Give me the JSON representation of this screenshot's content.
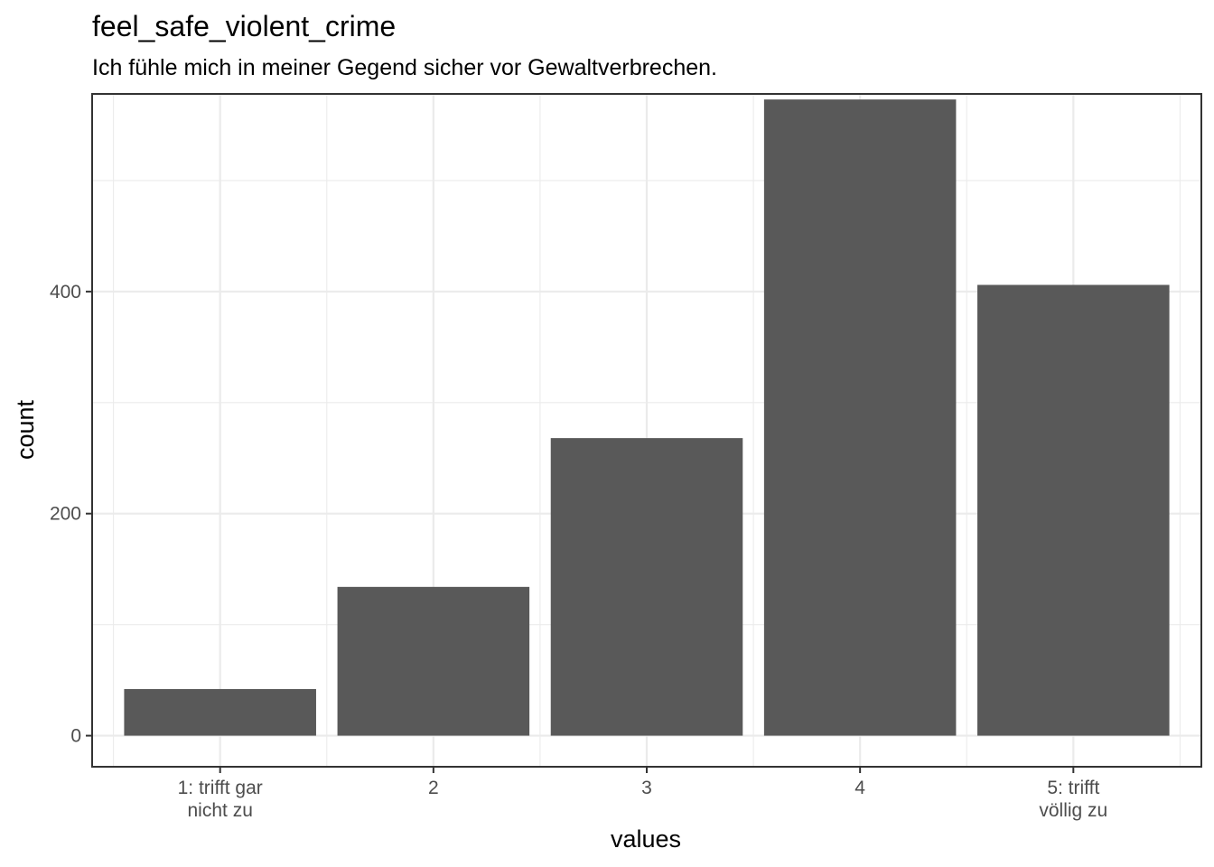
{
  "chart_data": {
    "type": "bar",
    "title": "feel_safe_violent_crime",
    "subtitle": "Ich fühle mich in meiner Gegend sicher vor Gewaltverbrechen.",
    "xlabel": "values",
    "ylabel": "count",
    "categories": [
      [
        "1: trifft gar",
        "nicht zu"
      ],
      [
        "2"
      ],
      [
        "3"
      ],
      [
        "4"
      ],
      [
        "5: trifft",
        "völlig zu"
      ]
    ],
    "values": [
      42,
      134,
      268,
      573,
      406
    ],
    "ylim": [
      -28,
      578
    ],
    "y_ticks": [
      0,
      200,
      400
    ],
    "y_tick_labels": [
      "0",
      "200",
      "400"
    ],
    "grid": true,
    "bar_color": "#595959",
    "grid_color": "#ebebeb",
    "panel_border_color": "#333333"
  }
}
